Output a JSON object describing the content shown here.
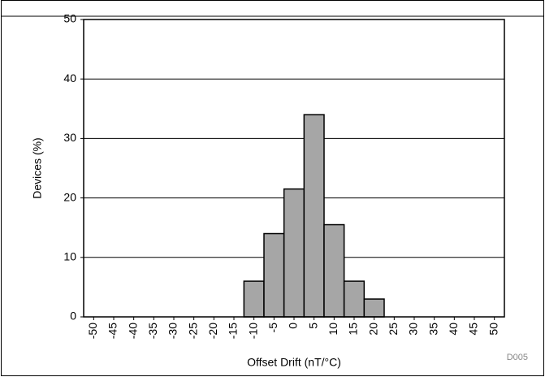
{
  "chart_data": {
    "type": "histogram",
    "xlabel": "Offset Drift (nT/°C)",
    "ylabel": "Devices (%)",
    "note": "D005",
    "bins": [
      -52.5,
      -47.5,
      -42.5,
      -37.5,
      -32.5,
      -27.5,
      -22.5,
      -17.5,
      -12.5,
      -7.5,
      -2.5,
      2.5,
      7.5,
      12.5,
      17.5,
      22.5,
      27.5,
      32.5,
      37.5,
      42.5,
      47.5,
      52.5
    ],
    "values": [
      0,
      0,
      0,
      0,
      0,
      0,
      0,
      0,
      6,
      14,
      21.5,
      34,
      15.5,
      6,
      3,
      0,
      0,
      0,
      0,
      0,
      0
    ],
    "color": "#a6a6a6",
    "xlim": [
      -52.5,
      52.5
    ],
    "xticks": [
      -50,
      -45,
      -40,
      -35,
      -30,
      -25,
      -20,
      -15,
      -10,
      -5,
      0,
      5,
      10,
      15,
      20,
      25,
      30,
      35,
      40,
      45,
      50
    ],
    "ylim": [
      0,
      50
    ],
    "yticks": [
      0,
      10,
      20,
      30,
      40,
      50
    ],
    "grid": true
  }
}
